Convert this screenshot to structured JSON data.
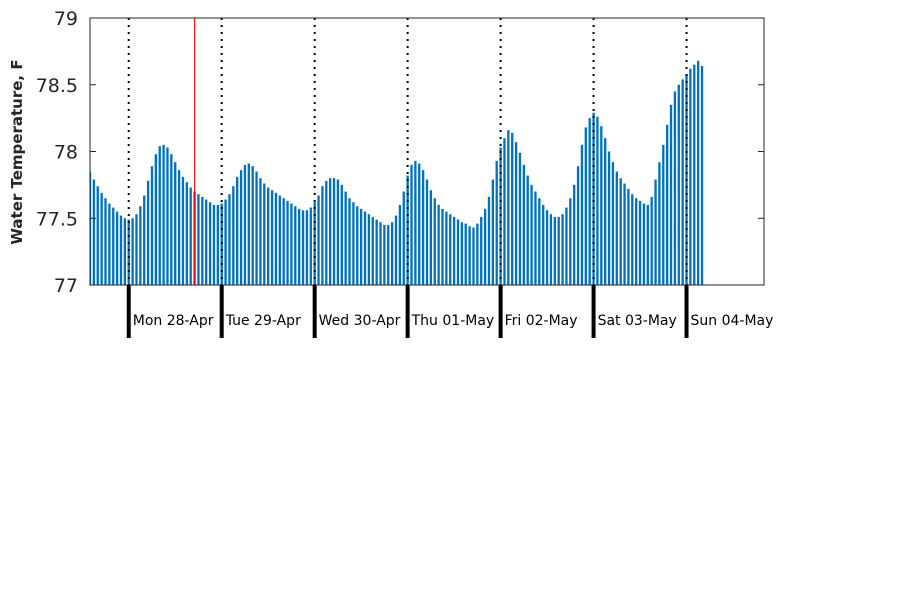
{
  "chart_data": {
    "type": "bar",
    "title": "",
    "xlabel": "",
    "ylabel": "Water Temperature, F",
    "ylim": [
      77,
      79
    ],
    "yticks": [
      "77",
      "77.5",
      "78",
      "78.5",
      "79"
    ],
    "bar_color": "#0072bd",
    "marker_color": "#ff0000",
    "day_separator_style": "dotted",
    "x_start": "2025-04-27 14:00",
    "x_end": "2025-05-04 20:00",
    "step_hours": 1,
    "now_marker": "2025-04-28 17:00",
    "days": [
      {
        "label": "Mon 28-Apr",
        "start": "2025-04-28 00:00"
      },
      {
        "label": "Tue 29-Apr",
        "start": "2025-04-29 00:00"
      },
      {
        "label": "Wed 30-Apr",
        "start": "2025-04-30 00:00"
      },
      {
        "label": "Thu 01-May",
        "start": "2025-05-01 00:00"
      },
      {
        "label": "Fri 02-May",
        "start": "2025-05-02 00:00"
      },
      {
        "label": "Sat 03-May",
        "start": "2025-05-03 00:00"
      },
      {
        "label": "Sun 04-May",
        "start": "2025-05-04 00:00"
      }
    ],
    "values": [
      77.85,
      77.79,
      77.74,
      77.69,
      77.65,
      77.61,
      77.58,
      77.55,
      77.52,
      77.5,
      77.49,
      77.5,
      77.53,
      77.59,
      77.67,
      77.78,
      77.89,
      77.98,
      78.04,
      78.05,
      78.03,
      77.98,
      77.92,
      77.86,
      77.81,
      77.77,
      77.73,
      77.7,
      77.68,
      77.66,
      77.64,
      77.62,
      77.6,
      77.6,
      77.61,
      77.64,
      77.68,
      77.74,
      77.81,
      77.86,
      77.9,
      77.91,
      77.89,
      77.85,
      77.8,
      77.76,
      77.73,
      77.71,
      77.69,
      77.67,
      77.65,
      77.63,
      77.61,
      77.59,
      77.57,
      77.56,
      77.56,
      77.58,
      77.62,
      77.67,
      77.74,
      77.78,
      77.8,
      77.8,
      77.79,
      77.75,
      77.7,
      77.65,
      77.62,
      77.59,
      77.57,
      77.55,
      77.53,
      77.51,
      77.49,
      77.47,
      77.45,
      77.45,
      77.47,
      77.52,
      77.6,
      77.7,
      77.82,
      77.9,
      77.93,
      77.91,
      77.86,
      77.79,
      77.71,
      77.65,
      77.6,
      77.57,
      77.55,
      77.53,
      77.51,
      77.49,
      77.47,
      77.46,
      77.44,
      77.43,
      77.46,
      77.51,
      77.57,
      77.66,
      77.79,
      77.93,
      78.03,
      78.1,
      78.16,
      78.14,
      78.07,
      77.99,
      77.9,
      77.82,
      77.75,
      77.7,
      77.65,
      77.6,
      77.56,
      77.53,
      77.51,
      77.51,
      77.53,
      77.58,
      77.65,
      77.75,
      77.89,
      78.05,
      78.18,
      78.25,
      78.29,
      78.26,
      78.19,
      78.1,
      78.0,
      77.92,
      77.85,
      77.8,
      77.76,
      77.72,
      77.68,
      77.65,
      77.63,
      77.61,
      77.6,
      77.66,
      77.79,
      77.92,
      78.05,
      78.2,
      78.35,
      78.45,
      78.5,
      78.54,
      78.58,
      78.62,
      78.65,
      78.68,
      78.64
    ]
  }
}
